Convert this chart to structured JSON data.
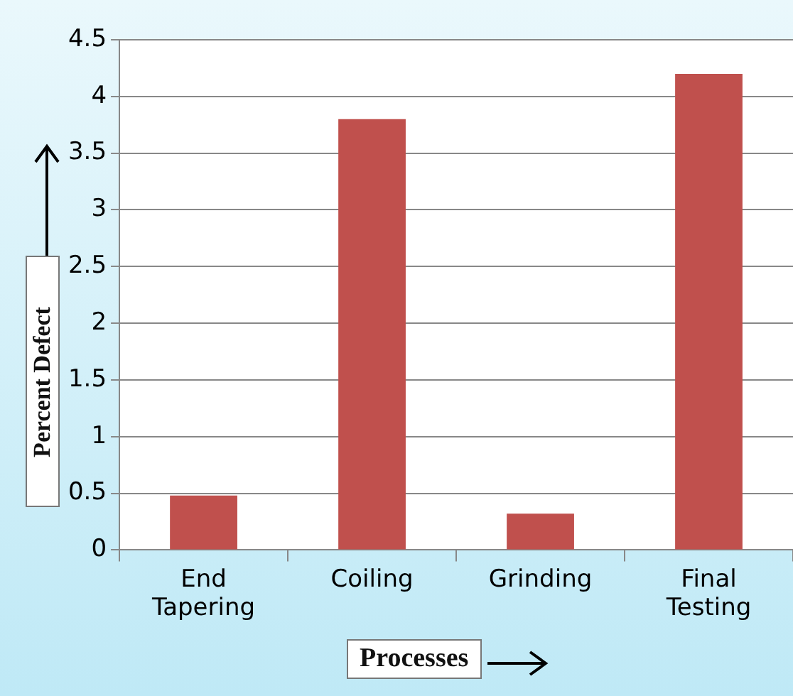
{
  "chart_data": {
    "type": "bar",
    "xlabel": "Processes",
    "ylabel": "Percent Defect",
    "categories": [
      "End Tapering",
      "Coiling",
      "Grinding",
      "Final Testing"
    ],
    "values": [
      0.48,
      3.8,
      0.32,
      4.2
    ],
    "color": "#c0504d",
    "ylim": [
      0,
      4.5
    ],
    "yticks": [
      0,
      0.5,
      1,
      1.5,
      2,
      2.5,
      3,
      3.5,
      4,
      4.5
    ],
    "grid": "y"
  }
}
